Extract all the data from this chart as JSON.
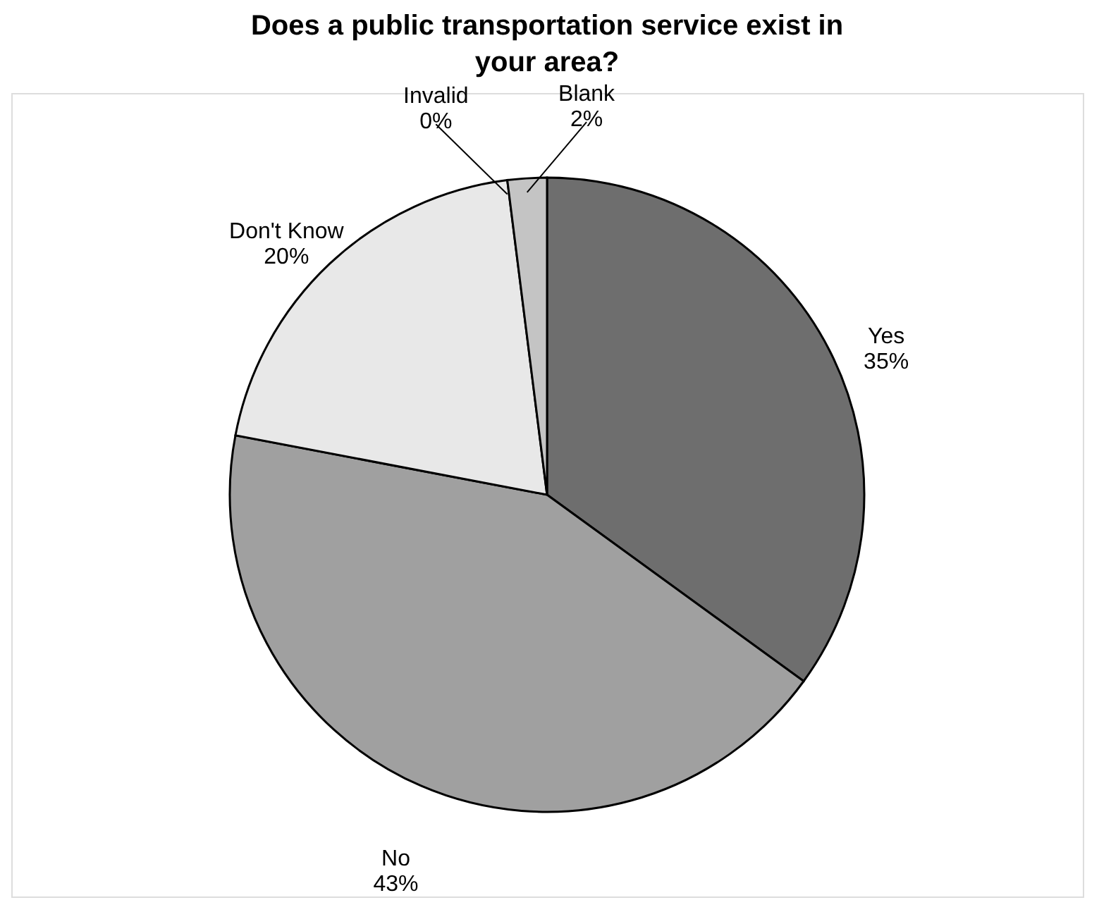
{
  "chart_data": {
    "type": "pie",
    "title": "Does a public transportation service exist in your area?",
    "categories": [
      "Yes",
      "No",
      "Don't Know",
      "Invalid",
      "Blank"
    ],
    "values": [
      35,
      43,
      20,
      0,
      2
    ],
    "value_labels": [
      "35%",
      "43%",
      "20%",
      "0%",
      "2%"
    ],
    "colors": [
      "#6e6e6e",
      "#a0a0a0",
      "#e8e8e8",
      "#000000",
      "#c4c4c4"
    ],
    "legend": false
  }
}
